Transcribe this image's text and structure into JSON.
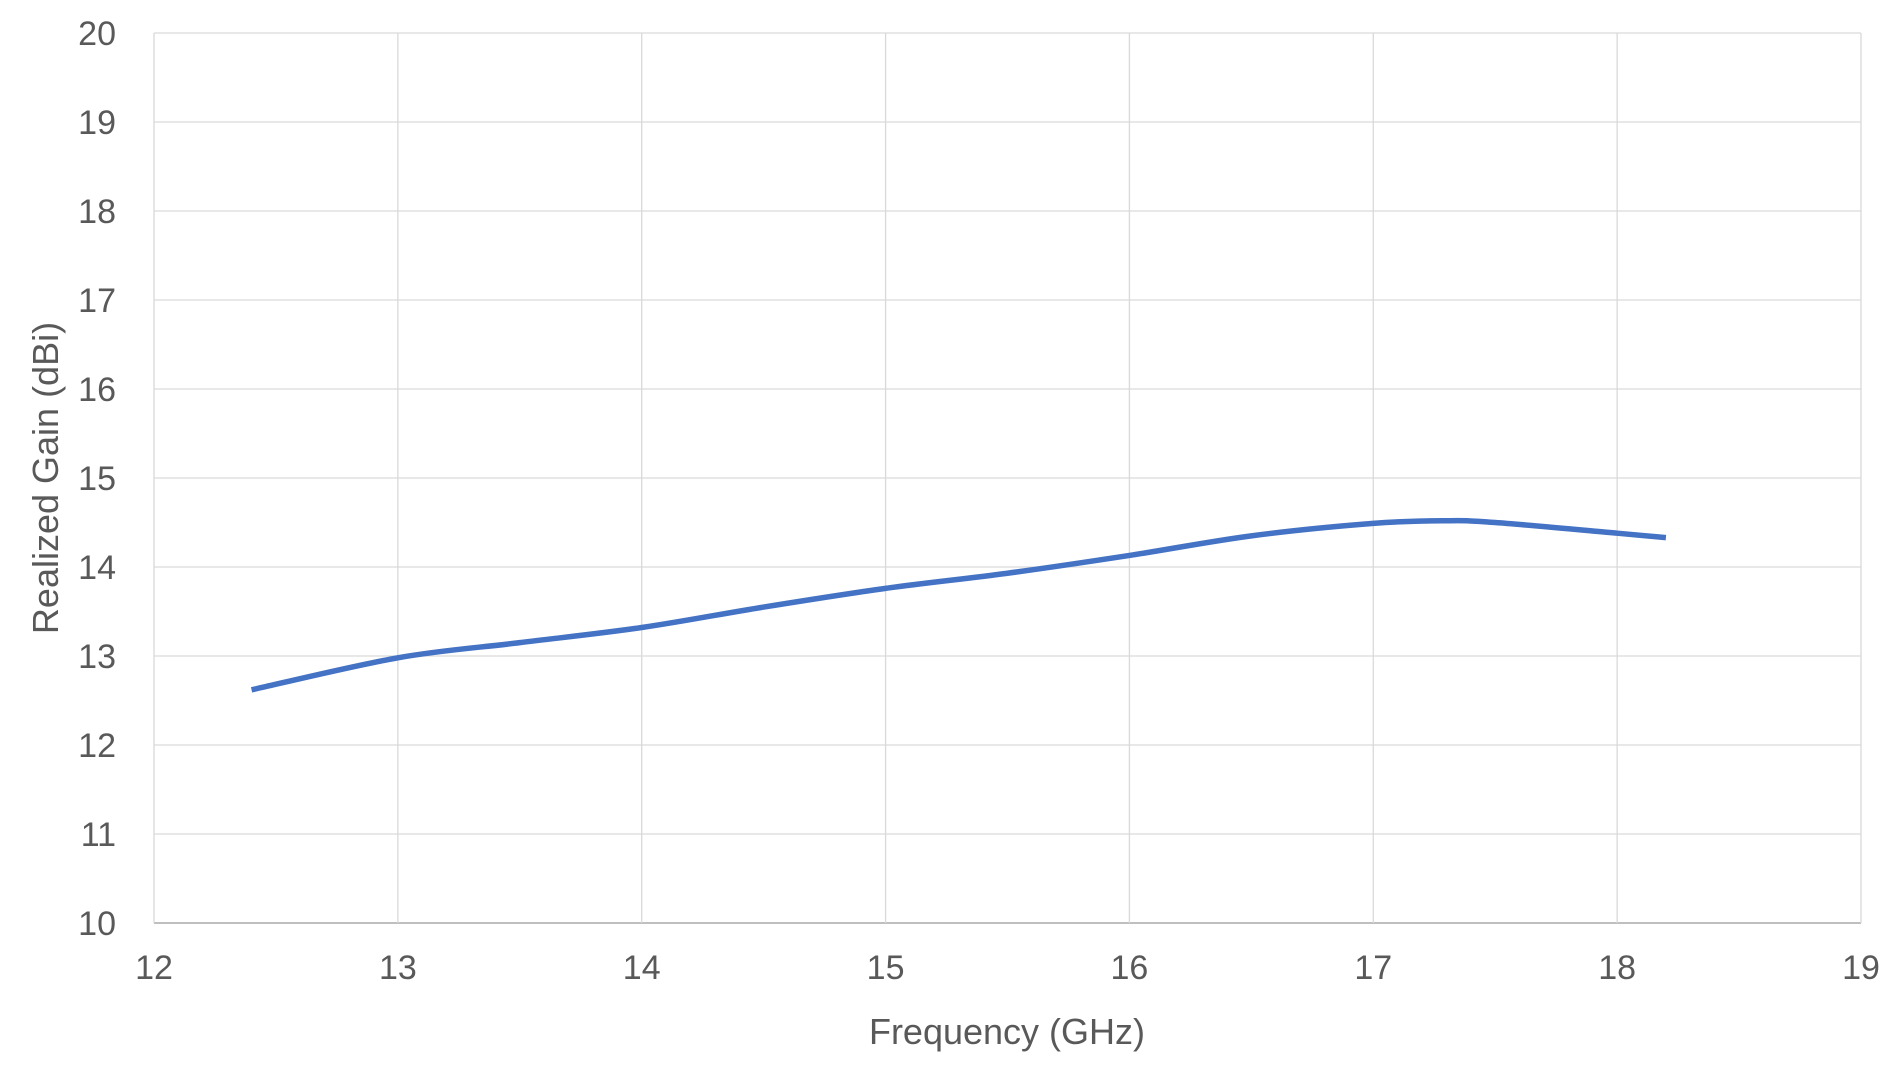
{
  "chart_data": {
    "type": "line",
    "title": "",
    "xlabel": "Frequency (GHz)",
    "ylabel": "Realized Gain (dBi)",
    "xlim": [
      12,
      19
    ],
    "ylim": [
      10,
      20
    ],
    "xticks": [
      12,
      13,
      14,
      15,
      16,
      17,
      18,
      19
    ],
    "yticks": [
      10,
      11,
      12,
      13,
      14,
      15,
      16,
      17,
      18,
      19,
      20
    ],
    "grid": true,
    "legend": "none",
    "series": [
      {
        "name": "Realized Gain",
        "color": "#4472C4",
        "x": [
          12.4,
          13.0,
          13.5,
          14.0,
          14.5,
          15.0,
          15.5,
          16.0,
          16.5,
          17.0,
          17.3,
          17.5,
          18.0,
          18.2
        ],
        "y": [
          12.62,
          12.98,
          13.15,
          13.32,
          13.55,
          13.76,
          13.93,
          14.13,
          14.35,
          14.49,
          14.52,
          14.5,
          14.38,
          14.33
        ]
      }
    ]
  }
}
